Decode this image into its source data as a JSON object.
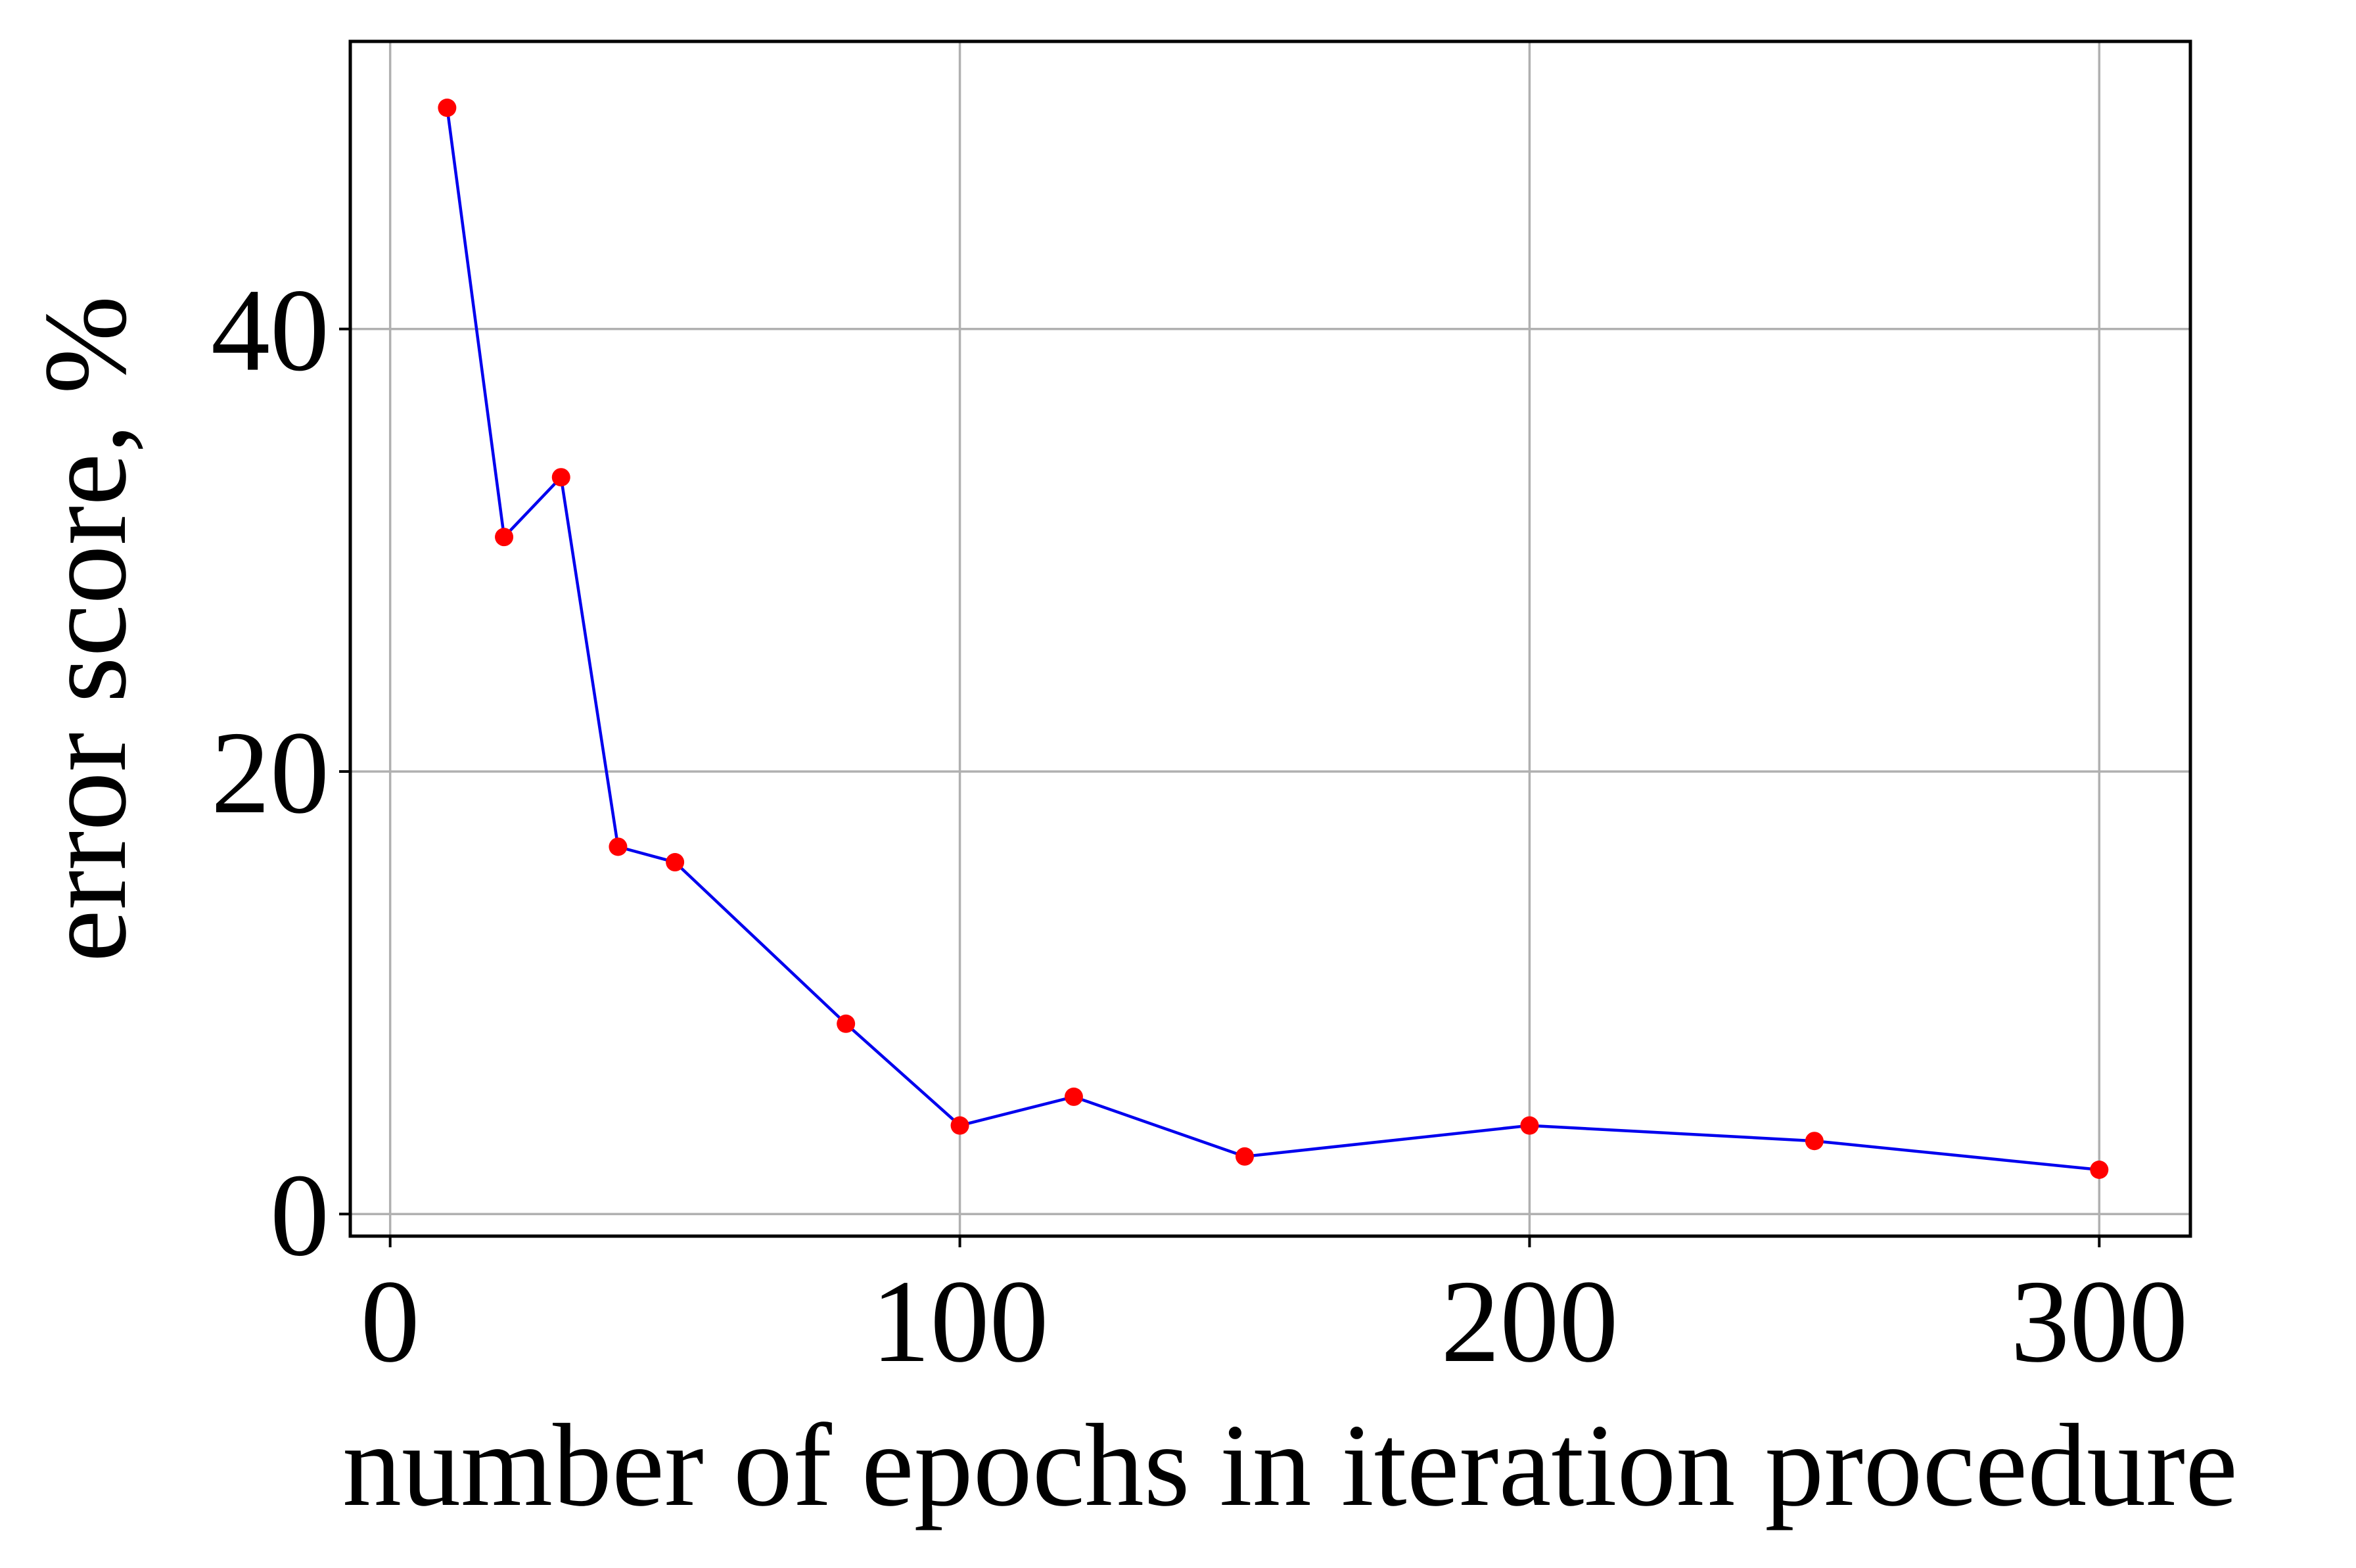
{
  "chart_data": {
    "type": "line",
    "title": "",
    "xlabel": "number of epochs in iteration procedure",
    "ylabel": "error score, %",
    "xlim": [
      -7,
      316
    ],
    "ylim": [
      -1,
      53
    ],
    "xticks": [
      0,
      100,
      200,
      300
    ],
    "yticks": [
      0,
      20,
      40
    ],
    "xtick_labels": [
      "0",
      "100",
      "200",
      "300"
    ],
    "ytick_labels": [
      "0",
      "20",
      "40"
    ],
    "grid": true,
    "legend": "none",
    "series": [
      {
        "x": [
          10,
          20,
          30,
          40,
          50,
          80,
          100,
          120,
          150,
          200,
          250,
          300
        ],
        "y": [
          50.0,
          30.6,
          33.3,
          16.6,
          15.9,
          8.6,
          4.0,
          5.3,
          2.6,
          4.0,
          3.3,
          2.0
        ],
        "line_color": "#0000ee",
        "marker_color": "#ff0000"
      }
    ],
    "colors": {
      "grid": "#b0b0b0",
      "axes": "#000000",
      "background": "#ffffff"
    }
  }
}
